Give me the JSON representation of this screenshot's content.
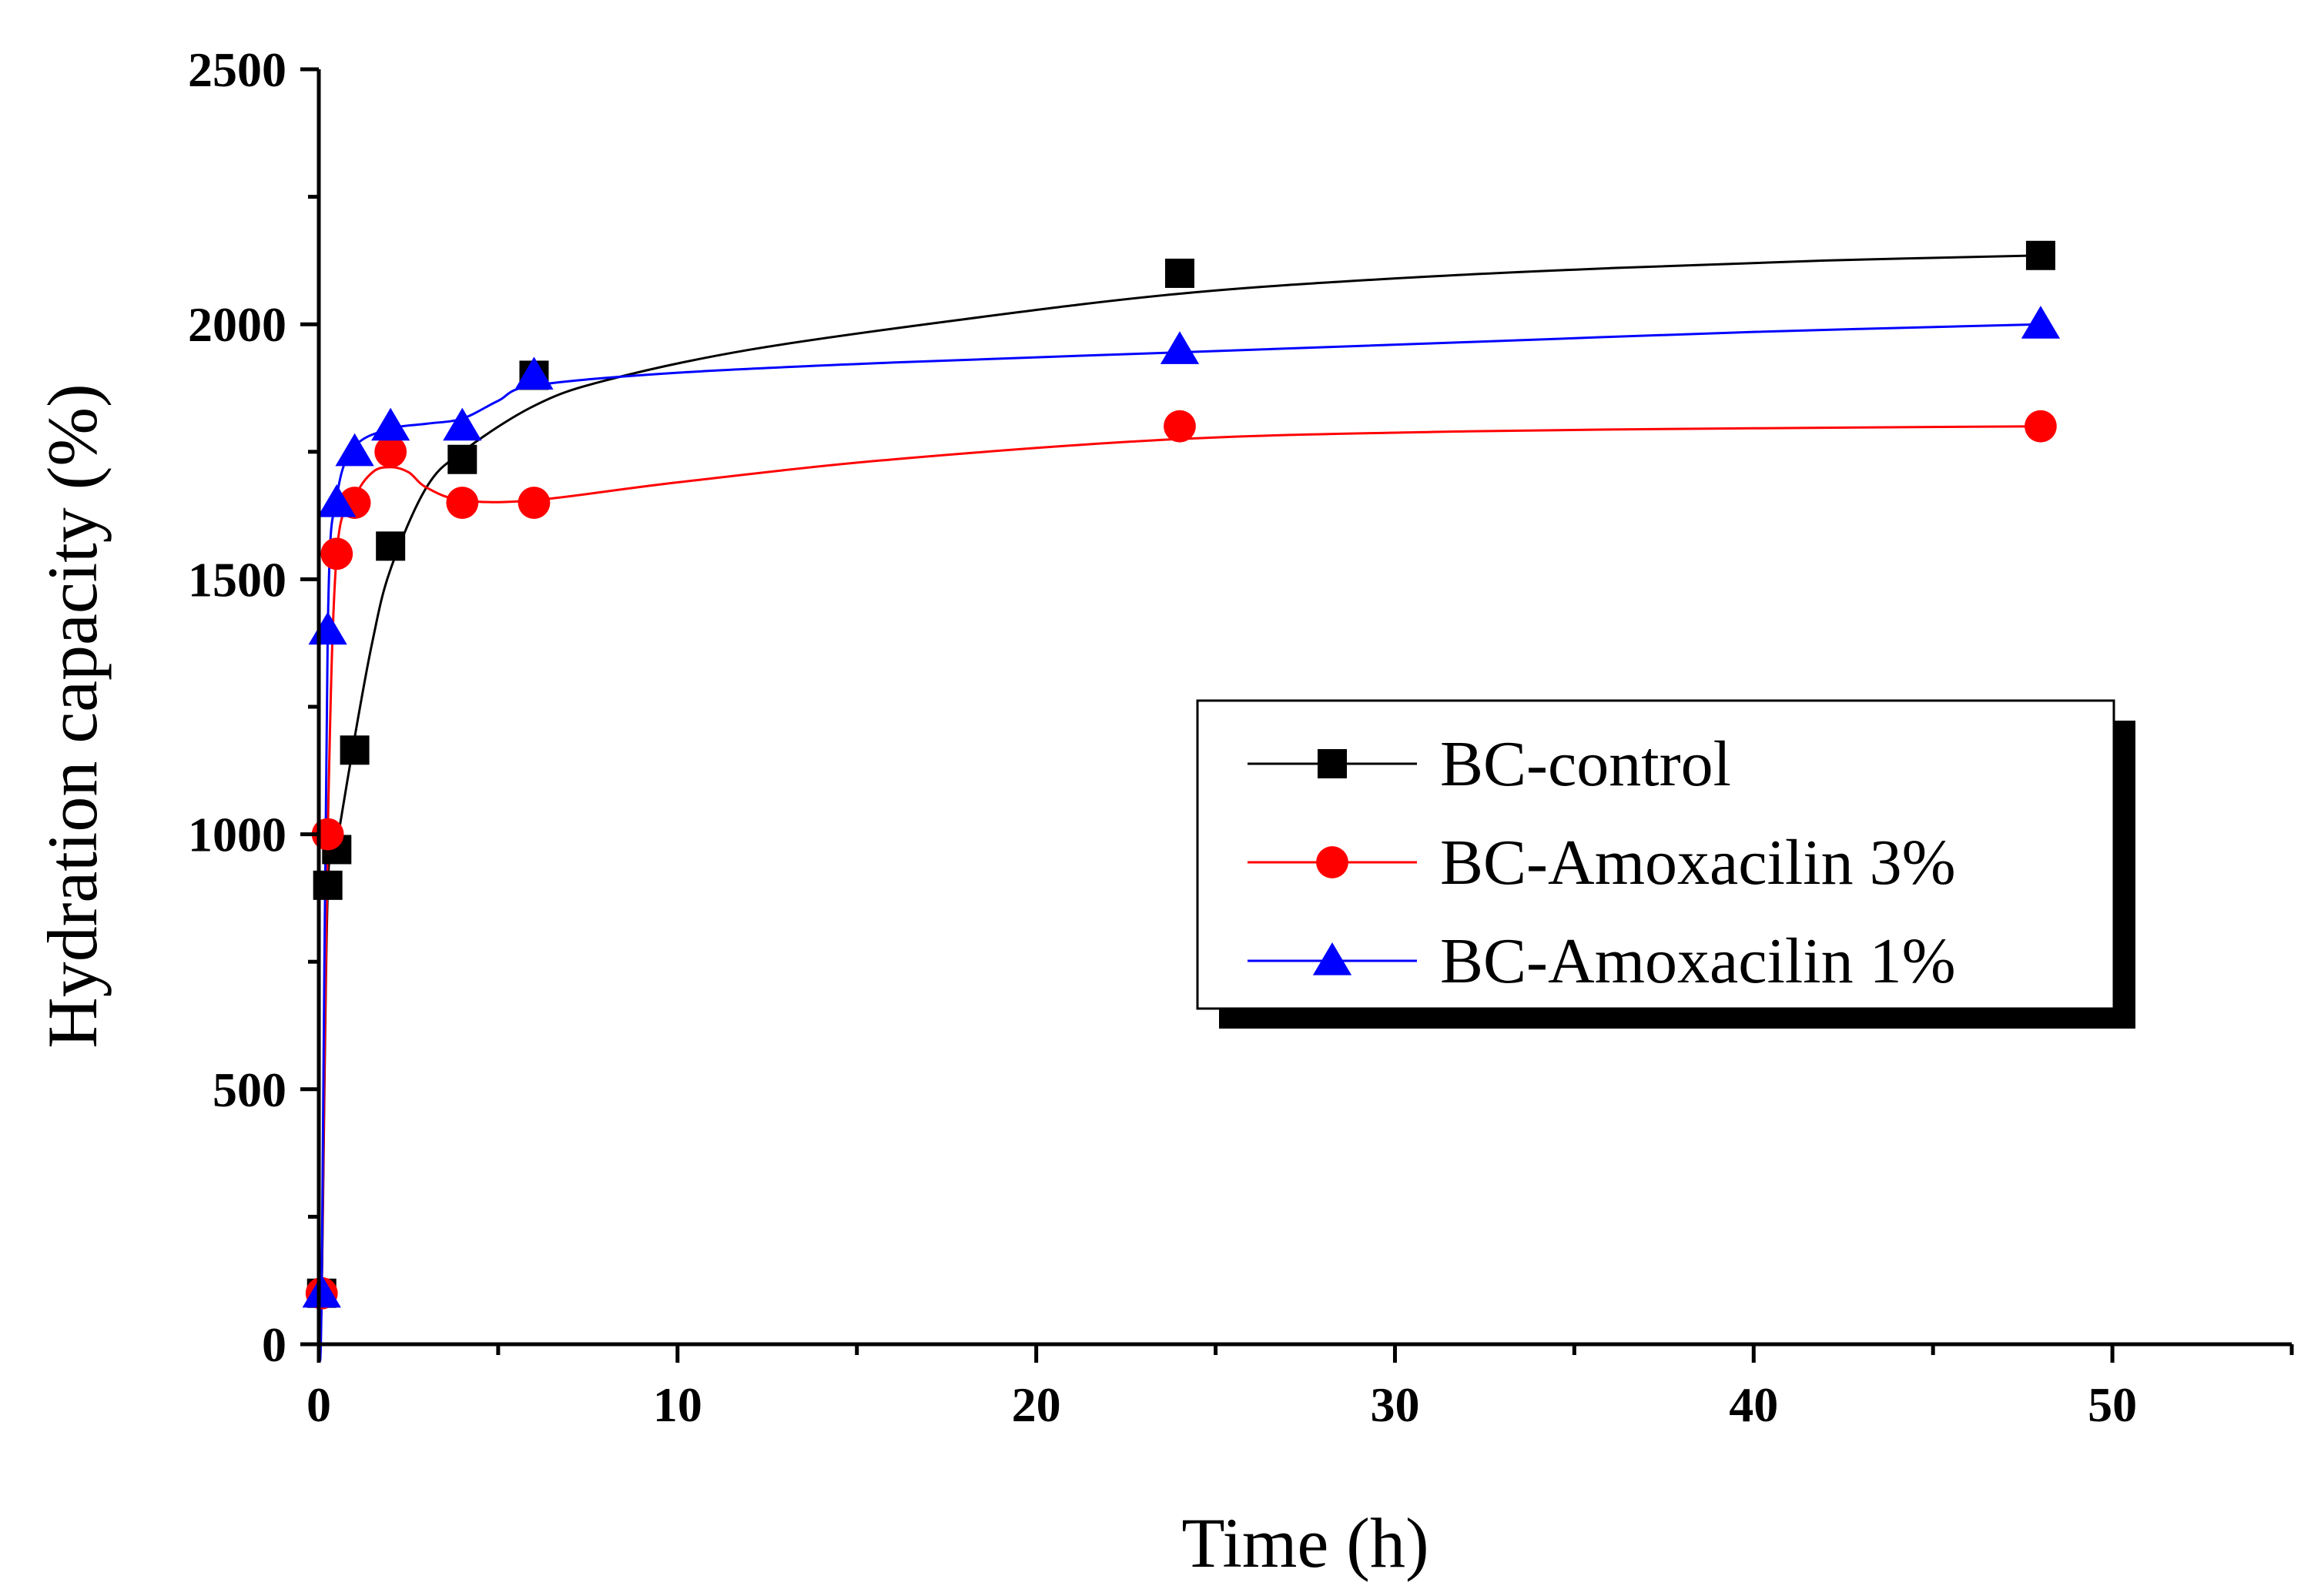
{
  "chart_data": {
    "type": "scatter",
    "title": "",
    "xlabel": "Time (h)",
    "ylabel": "Hydration capacity (%)",
    "xlim": [
      0,
      55
    ],
    "ylim": [
      0,
      2500
    ],
    "xticks": [
      0,
      10,
      20,
      30,
      40,
      50
    ],
    "yticks": [
      0,
      500,
      1000,
      1500,
      2000,
      2500
    ],
    "xtick_labels": [
      "0",
      "10",
      "20",
      "30",
      "40",
      "50"
    ],
    "ytick_labels": [
      "0",
      "500",
      "1000",
      "1500",
      "2000",
      "2500"
    ],
    "grid": false,
    "legend_position": "center-right",
    "series": [
      {
        "name": "BC-control",
        "marker": "square",
        "color": "#000000",
        "x": [
          0.08,
          0.25,
          0.5,
          1,
          2,
          4,
          6,
          24,
          48
        ],
        "y": [
          100,
          900,
          970,
          1165,
          1565,
          1735,
          1900,
          2100,
          2135
        ],
        "curve": [
          [
            0,
            0
          ],
          [
            0.08,
            100
          ],
          [
            0.25,
            890
          ],
          [
            0.5,
            980
          ],
          [
            1,
            1190
          ],
          [
            1.5,
            1380
          ],
          [
            2,
            1520
          ],
          [
            3,
            1680
          ],
          [
            4,
            1750
          ],
          [
            6,
            1840
          ],
          [
            8,
            1890
          ],
          [
            12,
            1950
          ],
          [
            18,
            2010
          ],
          [
            24,
            2060
          ],
          [
            30,
            2090
          ],
          [
            36,
            2110
          ],
          [
            42,
            2125
          ],
          [
            48,
            2135
          ]
        ]
      },
      {
        "name": "BC-Amoxacilin 3%",
        "marker": "circle",
        "color": "#ff0000",
        "x": [
          0.08,
          0.25,
          0.5,
          1,
          2,
          4,
          6,
          24,
          48
        ],
        "y": [
          100,
          1000,
          1550,
          1650,
          1750,
          1650,
          1650,
          1800,
          1800
        ],
        "curve": [
          [
            0,
            0
          ],
          [
            0.08,
            100
          ],
          [
            0.25,
            1000
          ],
          [
            0.5,
            1550
          ],
          [
            1,
            1660
          ],
          [
            1.5,
            1710
          ],
          [
            2,
            1720
          ],
          [
            2.5,
            1710
          ],
          [
            3,
            1680
          ],
          [
            4,
            1655
          ],
          [
            6,
            1655
          ],
          [
            10,
            1690
          ],
          [
            16,
            1735
          ],
          [
            24,
            1775
          ],
          [
            32,
            1790
          ],
          [
            40,
            1796
          ],
          [
            48,
            1800
          ]
        ]
      },
      {
        "name": "BC-Amoxacilin 1%",
        "marker": "triangle",
        "color": "#0000ff",
        "x": [
          0.08,
          0.25,
          0.5,
          1,
          2,
          4,
          6,
          24,
          48
        ],
        "y": [
          100,
          1400,
          1650,
          1750,
          1800,
          1800,
          1900,
          1950,
          2000
        ],
        "curve": [
          [
            0,
            0
          ],
          [
            0.08,
            100
          ],
          [
            0.25,
            1400
          ],
          [
            0.5,
            1660
          ],
          [
            1,
            1760
          ],
          [
            2,
            1795
          ],
          [
            3,
            1805
          ],
          [
            4,
            1815
          ],
          [
            5,
            1850
          ],
          [
            6,
            1880
          ],
          [
            10,
            1905
          ],
          [
            16,
            1925
          ],
          [
            24,
            1945
          ],
          [
            32,
            1965
          ],
          [
            40,
            1985
          ],
          [
            48,
            2000
          ]
        ]
      }
    ]
  }
}
